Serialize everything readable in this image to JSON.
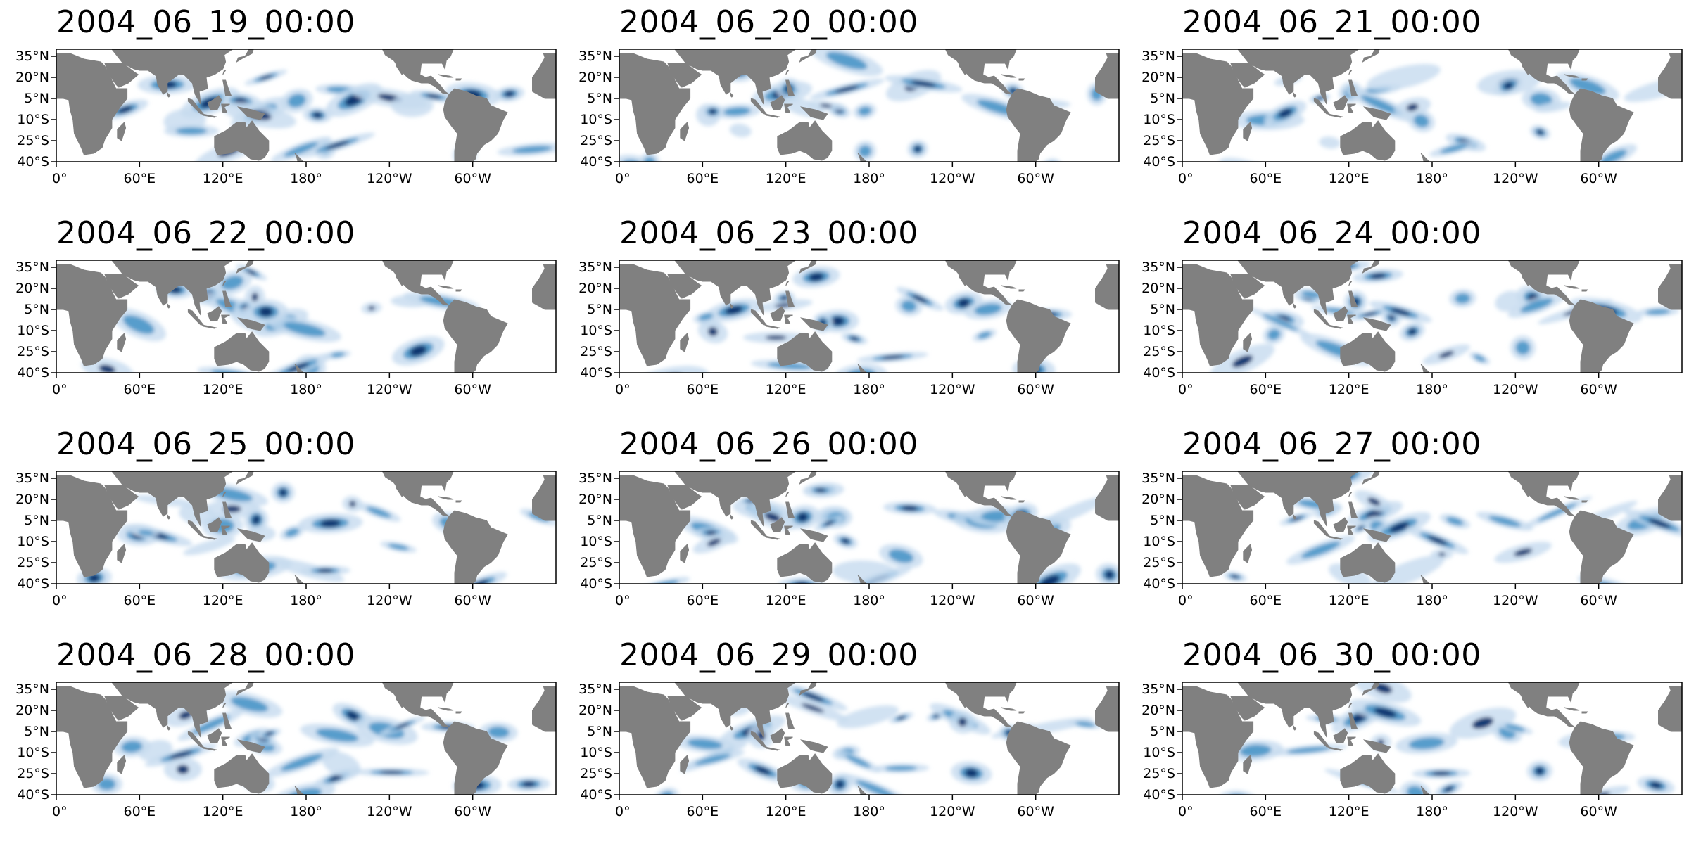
{
  "panels": [
    {
      "title": "2004_06_19_00:00",
      "seed": 11
    },
    {
      "title": "2004_06_20_00:00",
      "seed": 23
    },
    {
      "title": "2004_06_21_00:00",
      "seed": 37
    },
    {
      "title": "2004_06_22_00:00",
      "seed": 41
    },
    {
      "title": "2004_06_23_00:00",
      "seed": 53
    },
    {
      "title": "2004_06_24_00:00",
      "seed": 67
    },
    {
      "title": "2004_06_25_00:00",
      "seed": 71
    },
    {
      "title": "2004_06_26_00:00",
      "seed": 83
    },
    {
      "title": "2004_06_27_00:00",
      "seed": 97
    },
    {
      "title": "2004_06_28_00:00",
      "seed": 101
    },
    {
      "title": "2004_06_29_00:00",
      "seed": 113
    },
    {
      "title": "2004_06_30_00:00",
      "seed": 127
    }
  ],
  "lat_ticks": [
    "35°N",
    "20°N",
    "5°N",
    "10°S",
    "25°S",
    "40°S"
  ],
  "lat_values": [
    35,
    20,
    5,
    -10,
    -25,
    -40
  ],
  "lon_ticks": [
    "0°",
    "60°E",
    "120°E",
    "180°",
    "120°W",
    "60°W"
  ],
  "lon_values": [
    0,
    60,
    120,
    180,
    240,
    300
  ],
  "extent": {
    "lon": [
      0,
      360
    ],
    "lat": [
      -40,
      40
    ]
  },
  "colors": {
    "land": "#808080",
    "ocean": "#ffffff",
    "precip_light": "#c6dbef",
    "precip_mid": "#4292c6",
    "precip_heavy": "#08306b"
  }
}
